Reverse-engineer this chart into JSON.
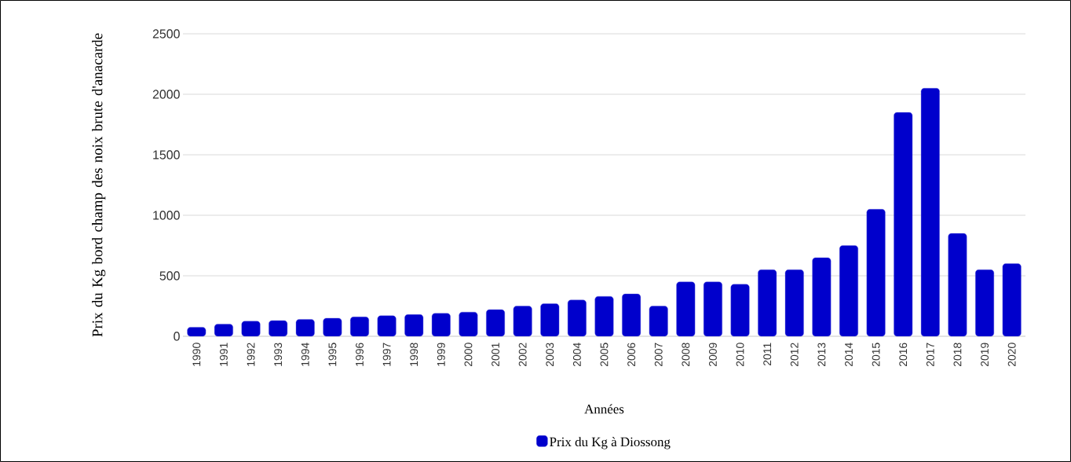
{
  "chart_data": {
    "type": "bar",
    "xlabel": "Années",
    "ylabel": "Prix du Kg bord champ des noix brute d'anacarde",
    "categories": [
      "1990",
      "1991",
      "1992",
      "1993",
      "1994",
      "1995",
      "1996",
      "1997",
      "1998",
      "1999",
      "2000",
      "2001",
      "2002",
      "2003",
      "2004",
      "2005",
      "2006",
      "2007",
      "2008",
      "2009",
      "2010",
      "2011",
      "2012",
      "2013",
      "2014",
      "2015",
      "2016",
      "2017",
      "2018",
      "2019",
      "2020"
    ],
    "series": [
      {
        "name": "Prix du Kg à Diossong",
        "color": "#0000cc",
        "values": [
          75,
          100,
          125,
          130,
          140,
          150,
          160,
          170,
          180,
          190,
          200,
          220,
          250,
          270,
          300,
          330,
          350,
          250,
          450,
          450,
          430,
          550,
          550,
          650,
          750,
          1050,
          1850,
          2050,
          850,
          550,
          600
        ]
      }
    ],
    "ylim": [
      0,
      2500
    ],
    "yticks": [
      0,
      500,
      1000,
      1500,
      2000,
      2500
    ],
    "grid": "y",
    "legend": "bottom"
  }
}
